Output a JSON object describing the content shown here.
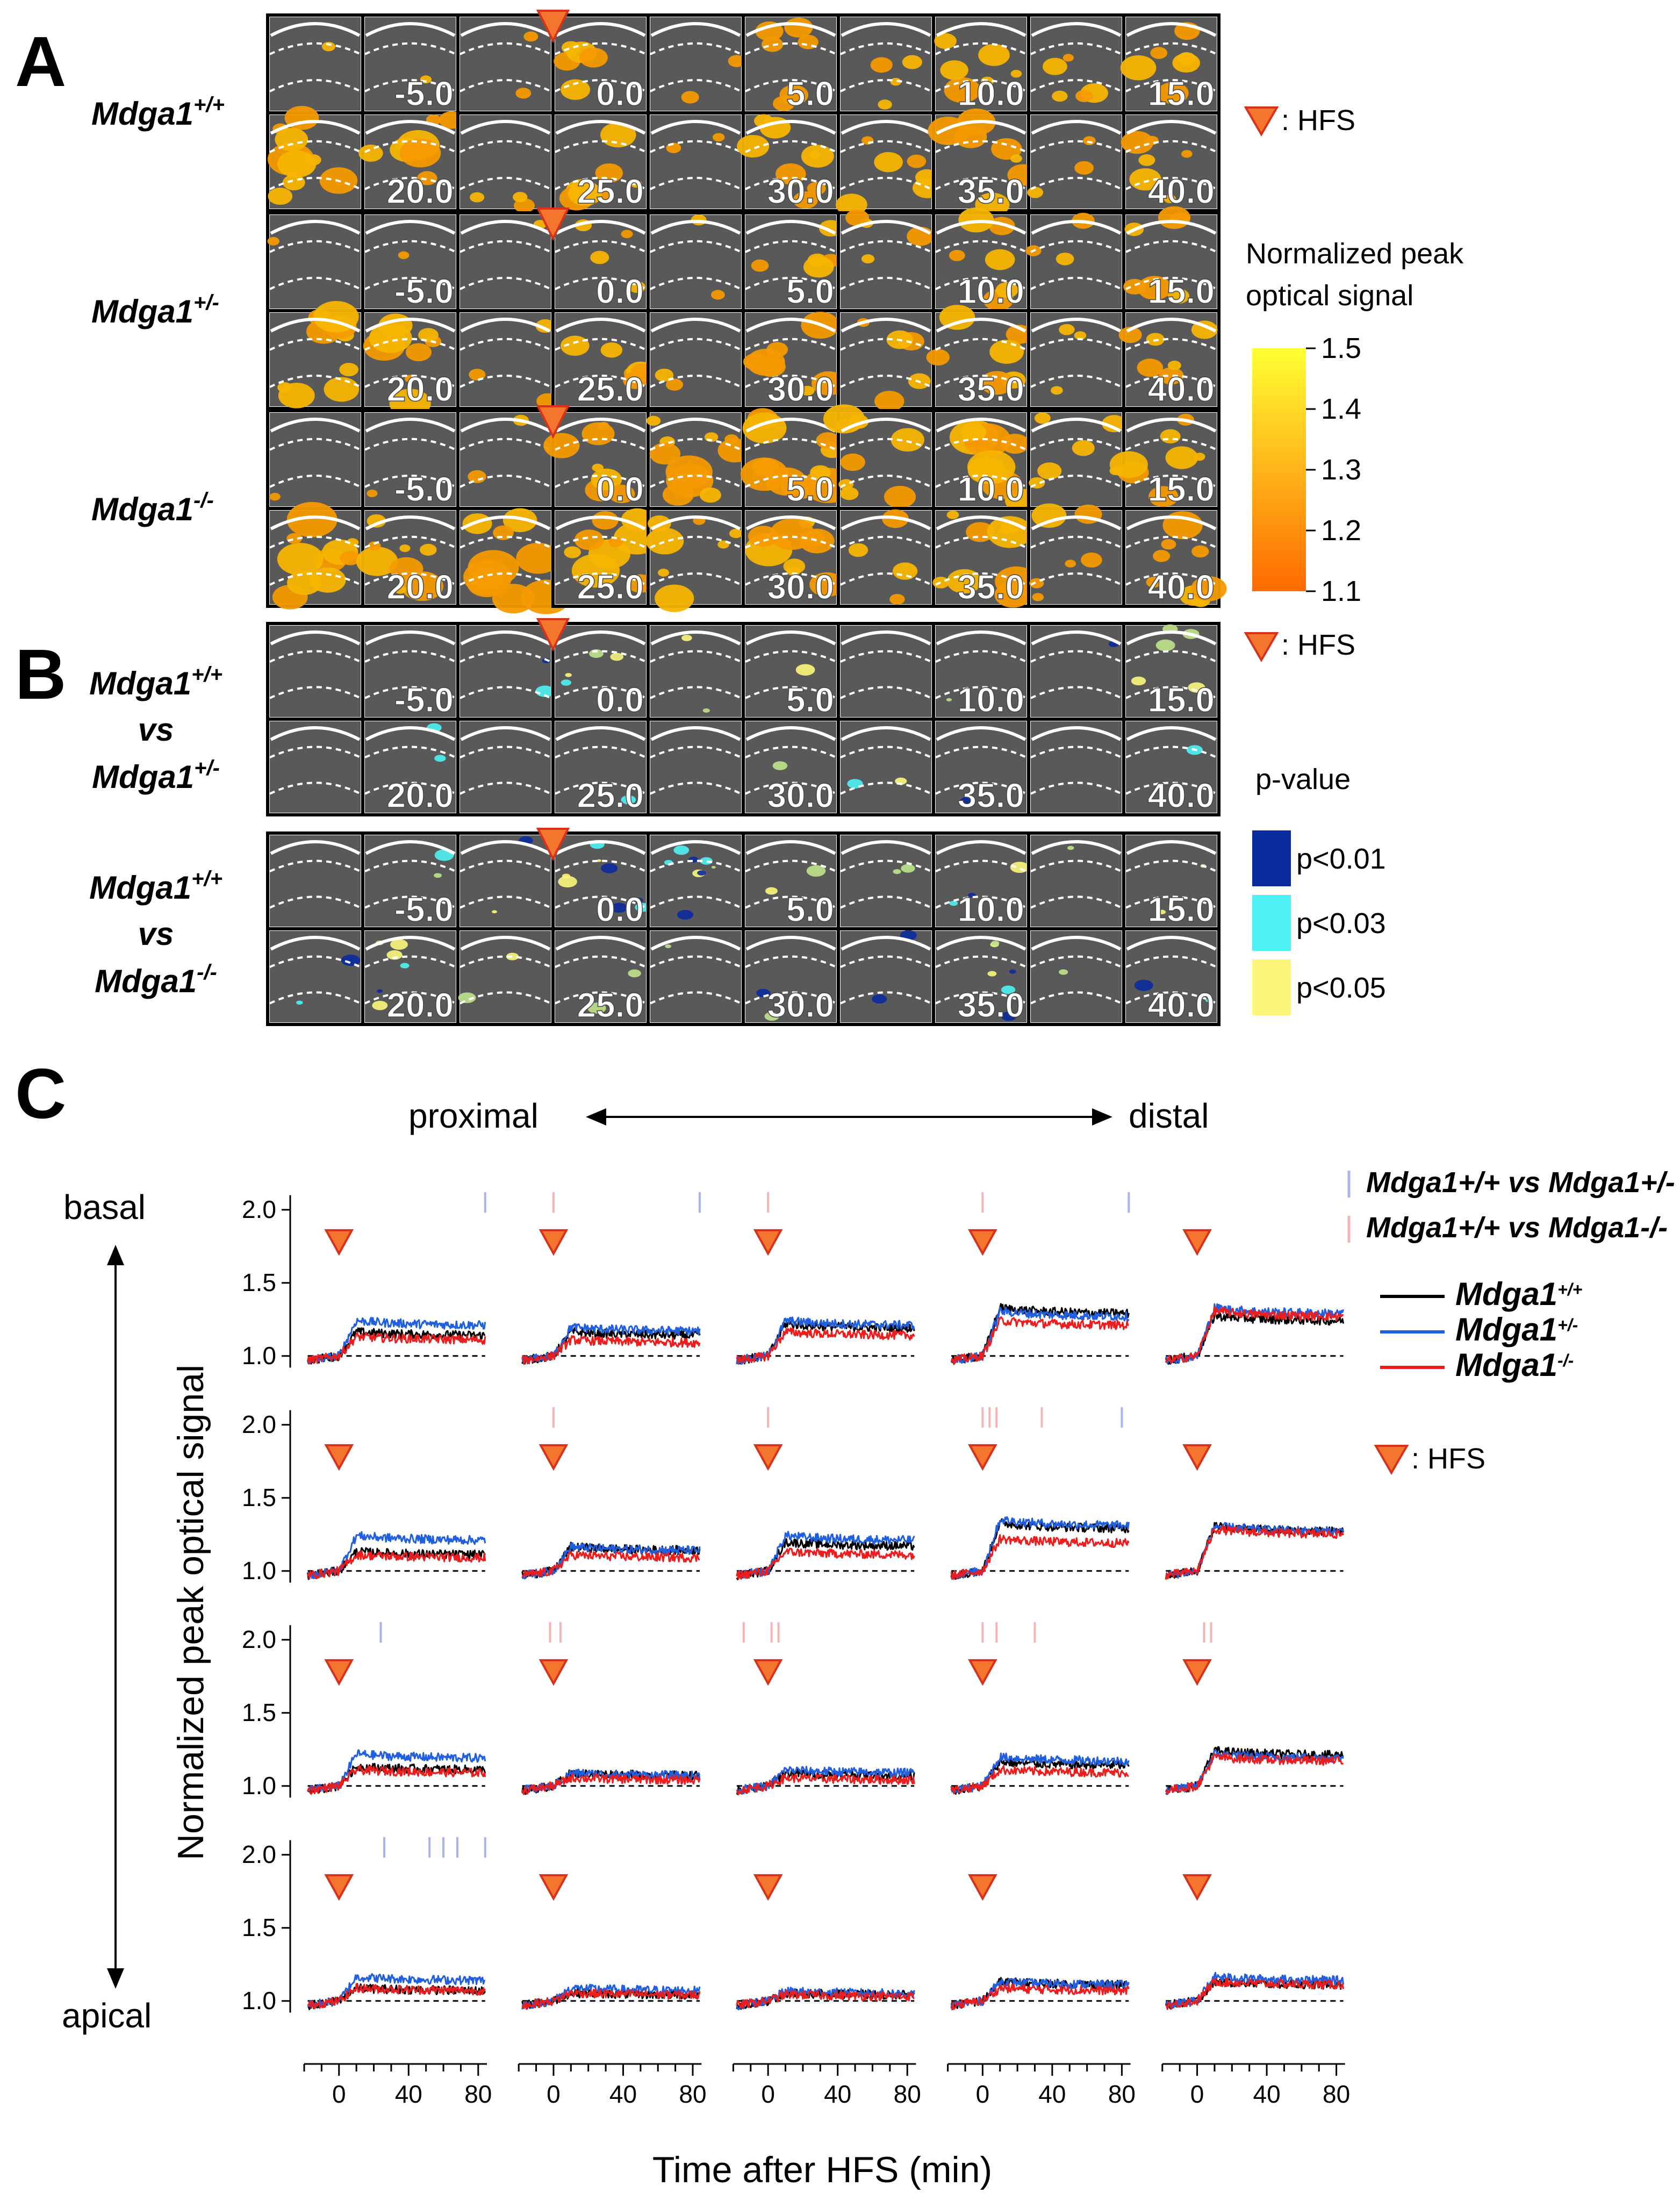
{
  "panels": {
    "A": {
      "letter": "A",
      "genotypes": [
        {
          "base": "Mdga1",
          "sup": "+/+"
        },
        {
          "base": "Mdga1",
          "sup": "+/-"
        },
        {
          "base": "Mdga1",
          "sup": "-/-"
        }
      ],
      "hfs_legend": ": HFS",
      "colorbar": {
        "title_line1": "Normalized peak",
        "title_line2": "optical signal",
        "ticks": [
          "1.5",
          "1.4",
          "1.3",
          "1.2",
          "1.1"
        ],
        "colors": {
          "top": "#ffff33",
          "bottom": "#ff6a00"
        }
      }
    },
    "B": {
      "letter": "B",
      "comparisons": [
        {
          "line1": {
            "base": "Mdga1",
            "sup": "+/+"
          },
          "vs": "vs",
          "line2": {
            "base": "Mdga1",
            "sup": "+/-"
          }
        },
        {
          "line1": {
            "base": "Mdga1",
            "sup": "+/+"
          },
          "vs": "vs",
          "line2": {
            "base": "Mdga1",
            "sup": "-/-"
          }
        }
      ],
      "hfs_legend": ": HFS",
      "pvalue_title": "p-value",
      "pvalue_entries": [
        {
          "label": "p<0.01",
          "color": "#0a2a9e"
        },
        {
          "label": "p<0.03",
          "color": "#4ef2f5"
        },
        {
          "label": "p<0.05",
          "color": "#fbf77a"
        }
      ]
    },
    "C": {
      "letter": "C",
      "proximal": "proximal",
      "distal": "distal",
      "basal": "basal",
      "apical": "apical",
      "ylabel": "Normalized peak optical signal",
      "xlabel": "Time after HFS (min)",
      "hfs_legend": ": HFS",
      "sig_legend": [
        {
          "text": "Mdga1+/+ vs Mdga1+/-",
          "color": "#a9b4ee"
        },
        {
          "text": "Mdga1+/+ vs Mdga1-/-",
          "color": "#f5b3b3"
        }
      ],
      "series_legend": [
        {
          "base": "Mdga1",
          "sup": "+/+",
          "color": "#000000"
        },
        {
          "base": "Mdga1",
          "sup": "+/-",
          "color": "#1f5fe0"
        },
        {
          "base": "Mdga1",
          "sup": "-/-",
          "color": "#ee1c1c"
        }
      ]
    }
  },
  "tile_times": {
    "row_top": [
      "",
      "-5.0",
      "",
      "0.0",
      "",
      "5.0",
      "",
      "10.0",
      "",
      "15.0"
    ],
    "row_bottom": [
      "",
      "20.0",
      "",
      "25.0",
      "",
      "30.0",
      "",
      "35.0",
      "",
      "40.0"
    ]
  },
  "colors": {
    "tile_bg": "#595959",
    "hfs_marker": "#f4762e",
    "hfs_marker_edge": "#d8321a"
  },
  "chart_data": {
    "type": "line",
    "grid": "5 columns (proximal to distal) x 4 rows (basal to apical)",
    "xlabel": "Time after HFS (min)",
    "ylabel": "Normalized peak optical signal",
    "x_ticks": [
      0,
      40,
      80
    ],
    "y_ticks": [
      1.0,
      1.5,
      2.0
    ],
    "xlim": [
      -20,
      85
    ],
    "ylim": [
      0.9,
      2.2
    ],
    "hfs_time": 0,
    "baseline": 1.0,
    "series_names": [
      "Mdga1+/+",
      "Mdga1+/-",
      "Mdga1-/-"
    ],
    "panel_levels": [
      [
        [
          1.15,
          1.22,
          1.12
        ],
        [
          1.15,
          1.18,
          1.1
        ],
        [
          1.2,
          1.22,
          1.15
        ],
        [
          1.3,
          1.28,
          1.22
        ],
        [
          1.25,
          1.3,
          1.28
        ]
      ],
      [
        [
          1.12,
          1.22,
          1.1
        ],
        [
          1.15,
          1.15,
          1.1
        ],
        [
          1.18,
          1.22,
          1.12
        ],
        [
          1.3,
          1.32,
          1.2
        ],
        [
          1.28,
          1.28,
          1.26
        ]
      ],
      [
        [
          1.12,
          1.2,
          1.1
        ],
        [
          1.08,
          1.08,
          1.05
        ],
        [
          1.08,
          1.1,
          1.05
        ],
        [
          1.15,
          1.18,
          1.1
        ],
        [
          1.22,
          1.2,
          1.18
        ]
      ],
      [
        [
          1.08,
          1.15,
          1.08
        ],
        [
          1.05,
          1.08,
          1.05
        ],
        [
          1.05,
          1.06,
          1.04
        ],
        [
          1.12,
          1.12,
          1.08
        ],
        [
          1.12,
          1.15,
          1.12
        ]
      ]
    ]
  }
}
